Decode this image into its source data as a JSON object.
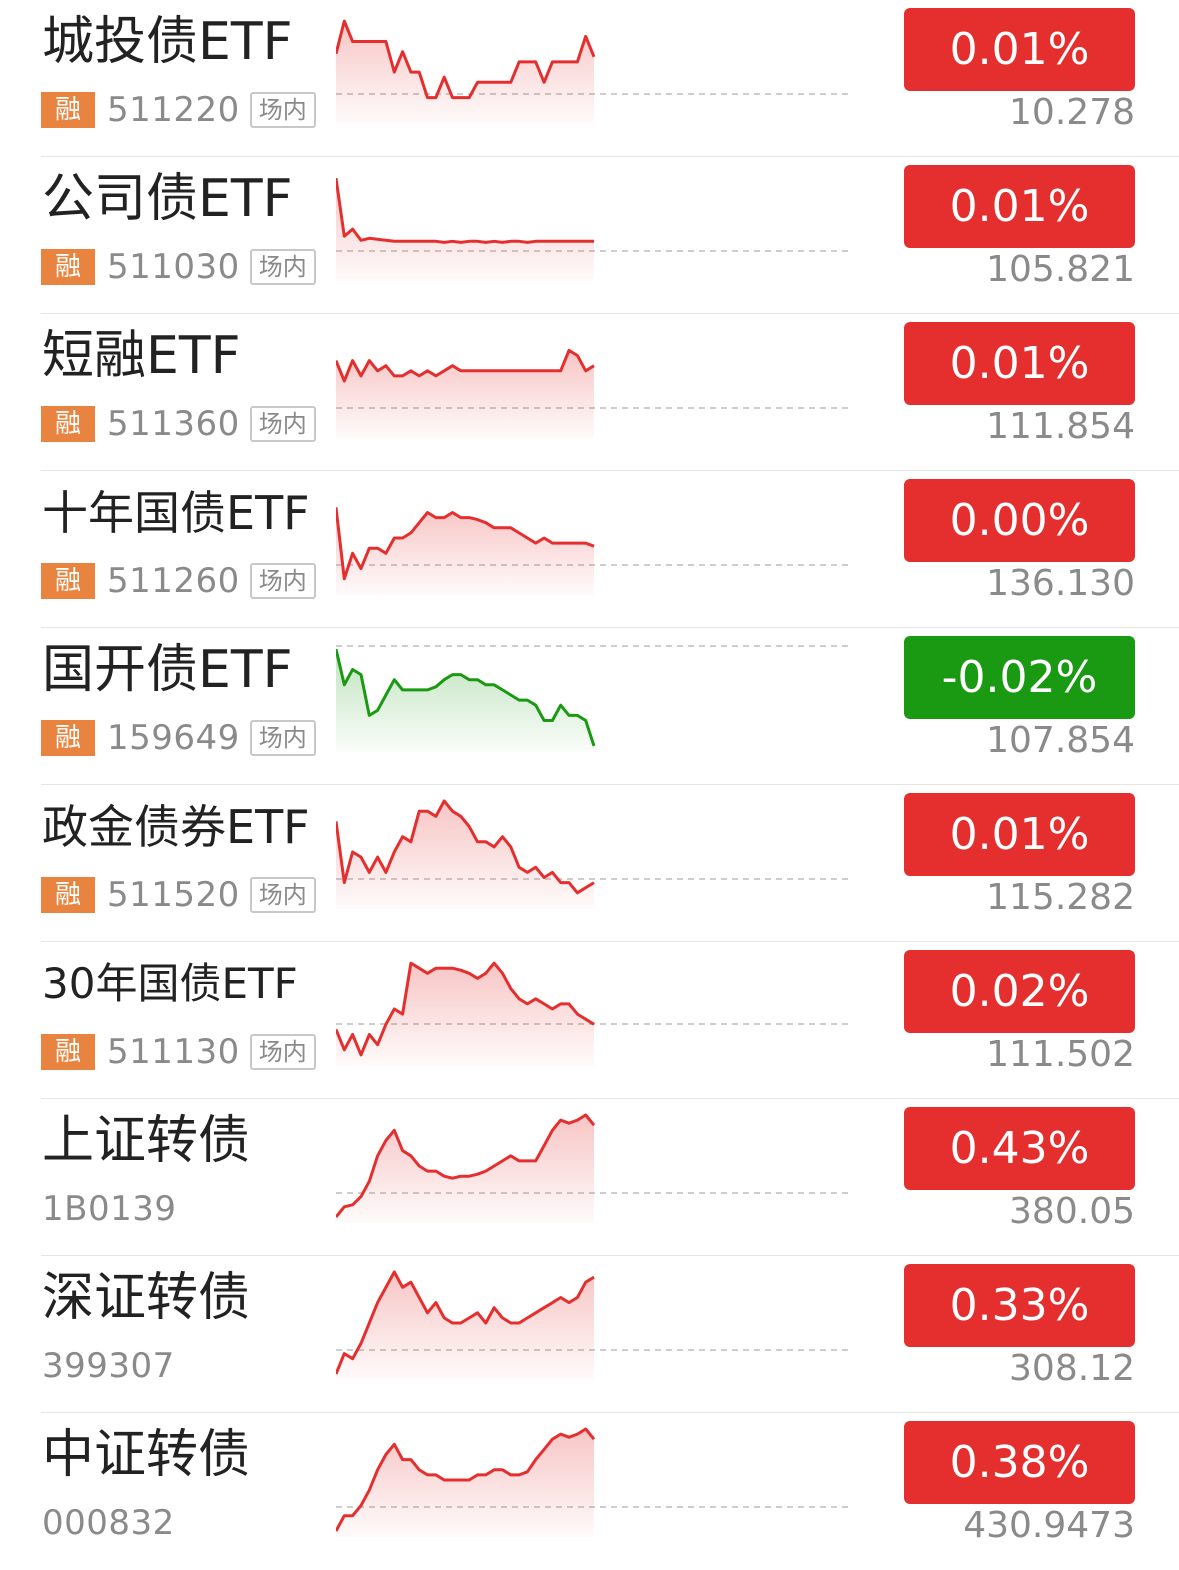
{
  "colors": {
    "up": "#e52f2f",
    "down": "#1a9a12",
    "rong_badge": "#e8843f",
    "muted_text": "#8a8a8a"
  },
  "rows": [
    {
      "name": "城投债ETF",
      "code": "511220",
      "margin_badge": "融",
      "venue_tag": "场内",
      "change": "0.01%",
      "price": "10.278",
      "trend": "up",
      "spark": [
        63,
        95,
        75,
        75,
        75,
        75,
        75,
        45,
        65,
        45,
        45,
        20,
        20,
        40,
        20,
        20,
        20,
        35,
        35,
        35,
        35,
        35,
        55,
        55,
        55,
        35,
        55,
        55,
        55,
        55,
        80,
        60
      ]
    },
    {
      "name": "公司债ETF",
      "code": "511030",
      "margin_badge": "融",
      "venue_tag": "场内",
      "change": "0.01%",
      "price": "105.821",
      "trend": "up",
      "spark": [
        95,
        38,
        45,
        34,
        36,
        35,
        34,
        33,
        33,
        33,
        33,
        33,
        33,
        32,
        33,
        32,
        33,
        33,
        32,
        33,
        32,
        33,
        33,
        32,
        33,
        33,
        33,
        33,
        33,
        33,
        33,
        33
      ]
    },
    {
      "name": "短融ETF",
      "code": "511360",
      "margin_badge": "融",
      "venue_tag": "场内",
      "change": "0.01%",
      "price": "111.854",
      "trend": "up",
      "spark": [
        70,
        50,
        70,
        55,
        70,
        60,
        65,
        55,
        55,
        60,
        55,
        60,
        55,
        60,
        65,
        60,
        60,
        60,
        60,
        60,
        60,
        60,
        60,
        60,
        60,
        60,
        60,
        60,
        80,
        75,
        60,
        65
      ]
    },
    {
      "name": "十年国债ETF",
      "code": "511260",
      "margin_badge": "融",
      "venue_tag": "场内",
      "change": "0.00%",
      "price": "136.130",
      "trend": "up",
      "spark": [
        80,
        10,
        35,
        20,
        40,
        40,
        35,
        50,
        50,
        55,
        65,
        75,
        70,
        70,
        75,
        70,
        70,
        68,
        65,
        60,
        60,
        60,
        55,
        50,
        45,
        50,
        45,
        45,
        45,
        45,
        45,
        42
      ]
    },
    {
      "name": "国开债ETF",
      "code": "159649",
      "margin_badge": "融",
      "venue_tag": "场内",
      "change": "-0.02%",
      "price": "107.854",
      "trend": "down",
      "spark": [
        95,
        60,
        75,
        70,
        30,
        35,
        50,
        65,
        55,
        55,
        55,
        55,
        58,
        65,
        70,
        70,
        65,
        65,
        60,
        60,
        55,
        50,
        45,
        45,
        40,
        25,
        25,
        40,
        30,
        30,
        25,
        0
      ]
    },
    {
      "name": "政金债券ETF",
      "code": "511520",
      "margin_badge": "融",
      "venue_tag": "场内",
      "change": "0.01%",
      "price": "115.282",
      "trend": "up",
      "spark": [
        80,
        20,
        50,
        45,
        30,
        45,
        30,
        50,
        65,
        60,
        90,
        90,
        85,
        100,
        90,
        85,
        75,
        60,
        60,
        55,
        65,
        55,
        35,
        30,
        35,
        25,
        30,
        20,
        20,
        10,
        15,
        20
      ]
    },
    {
      "name": "30年国债ETF",
      "code": "511130",
      "margin_badge": "融",
      "venue_tag": "场内",
      "change": "0.02%",
      "price": "111.502",
      "trend": "up",
      "spark": [
        30,
        10,
        25,
        5,
        25,
        15,
        35,
        50,
        45,
        95,
        90,
        85,
        90,
        90,
        90,
        88,
        85,
        80,
        85,
        95,
        85,
        70,
        60,
        55,
        60,
        55,
        50,
        55,
        55,
        45,
        40,
        35
      ]
    },
    {
      "name": "上证转债",
      "code": "1B0139",
      "change": "0.43%",
      "price": "380.05",
      "trend": "up",
      "spark": [
        0,
        10,
        12,
        20,
        35,
        60,
        75,
        85,
        65,
        60,
        50,
        45,
        45,
        40,
        38,
        40,
        40,
        42,
        45,
        50,
        55,
        60,
        55,
        55,
        55,
        70,
        85,
        95,
        92,
        95,
        100,
        90
      ]
    },
    {
      "name": "深证转债",
      "code": "399307",
      "change": "0.33%",
      "price": "308.12",
      "trend": "up",
      "spark": [
        0,
        20,
        15,
        30,
        50,
        70,
        85,
        100,
        85,
        90,
        75,
        60,
        70,
        55,
        50,
        50,
        55,
        60,
        50,
        65,
        55,
        50,
        50,
        55,
        60,
        65,
        70,
        75,
        70,
        75,
        90,
        95
      ]
    },
    {
      "name": "中证转债",
      "code": "000832",
      "change": "0.38%",
      "price": "430.9473",
      "trend": "up",
      "spark": [
        0,
        15,
        15,
        25,
        40,
        60,
        75,
        85,
        70,
        70,
        60,
        55,
        55,
        50,
        50,
        50,
        50,
        55,
        55,
        60,
        60,
        55,
        55,
        58,
        70,
        80,
        90,
        95,
        92,
        95,
        100,
        90
      ]
    }
  ]
}
